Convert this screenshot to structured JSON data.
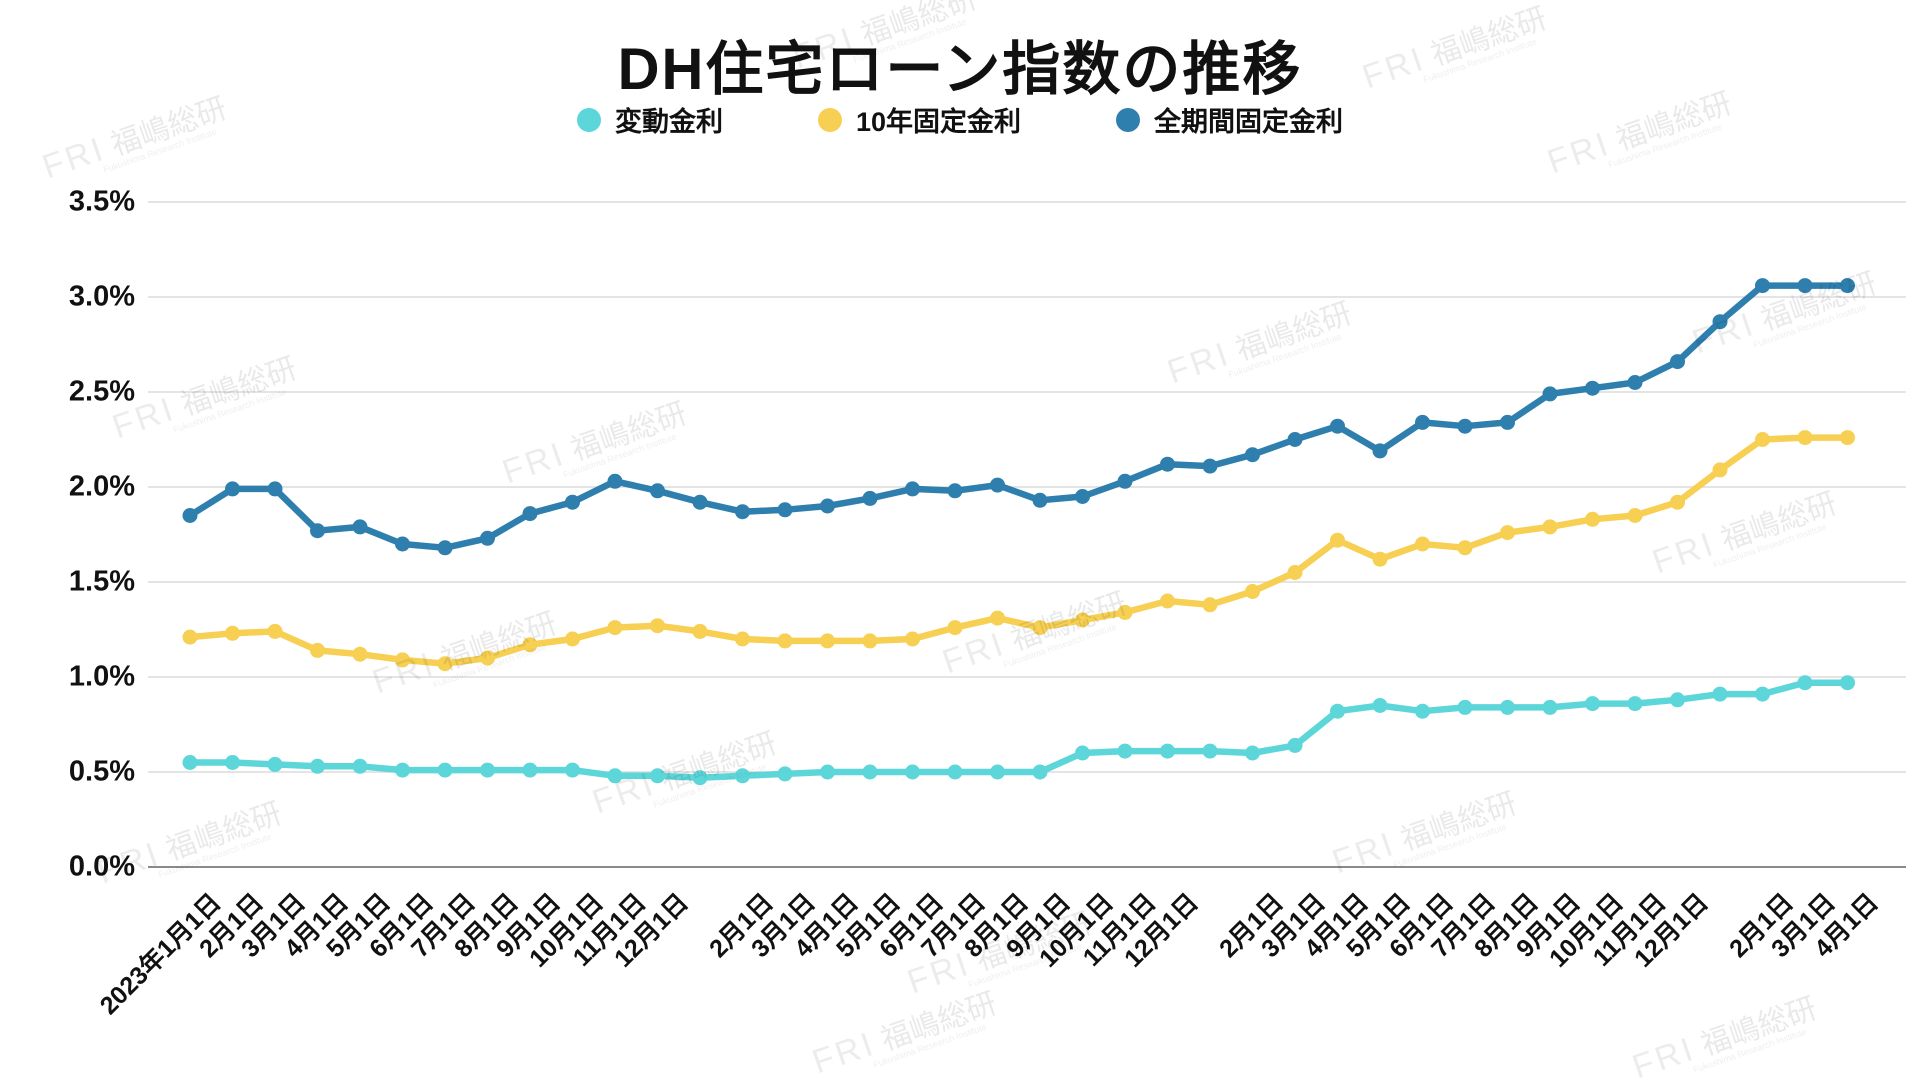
{
  "title": "DH住宅ローン指数の推移",
  "watermark": {
    "fri": "FRI",
    "jp": "福嶋総研",
    "sub": "Fukushima Research Institute"
  },
  "chart_data": {
    "type": "line",
    "title": "DH住宅ローン指数の推移",
    "grid": true,
    "legend_position": "top",
    "ylim": [
      0,
      3.5
    ],
    "ytick_step": 0.5,
    "ytick_labels": [
      "3.5%",
      "3.0%",
      "2.5%",
      "2.0%",
      "1.5%",
      "1.0%",
      "0.5%",
      "0.0%"
    ],
    "x_labels": [
      "2023年1月1日",
      "2月1日",
      "3月1日",
      "4月1日",
      "5月1日",
      "6月1日",
      "7月1日",
      "8月1日",
      "9月1日",
      "10月1日",
      "11月1日",
      "12月1日",
      "",
      "2月1日",
      "3月1日",
      "4月1日",
      "5月1日",
      "6月1日",
      "7月1日",
      "8月1日",
      "9月1日",
      "10月1日",
      "11月1日",
      "12月1日",
      "",
      "2月1日",
      "3月1日",
      "4月1日",
      "5月1日",
      "6月1日",
      "7月1日",
      "8月1日",
      "9月1日",
      "10月1日",
      "11月1日",
      "12月1日",
      "",
      "2月1日",
      "3月1日",
      "4月1日"
    ],
    "series": [
      {
        "name": "変動金利",
        "color": "#5DD6DA",
        "values": [
          0.55,
          0.55,
          0.54,
          0.53,
          0.53,
          0.51,
          0.51,
          0.51,
          0.51,
          0.51,
          0.48,
          0.48,
          0.47,
          0.48,
          0.49,
          0.5,
          0.5,
          0.5,
          0.5,
          0.5,
          0.5,
          0.6,
          0.61,
          0.61,
          0.61,
          0.6,
          0.64,
          0.82,
          0.85,
          0.82,
          0.84,
          0.84,
          0.84,
          0.86,
          0.86,
          0.88,
          0.91,
          0.91,
          0.97,
          0.97
        ]
      },
      {
        "name": "10年固定金利",
        "color": "#F7CF52",
        "values": [
          1.21,
          1.23,
          1.24,
          1.14,
          1.12,
          1.09,
          1.07,
          1.1,
          1.17,
          1.2,
          1.26,
          1.27,
          1.24,
          1.2,
          1.19,
          1.19,
          1.19,
          1.2,
          1.26,
          1.31,
          1.26,
          1.3,
          1.34,
          1.4,
          1.38,
          1.45,
          1.55,
          1.72,
          1.62,
          1.7,
          1.68,
          1.76,
          1.79,
          1.83,
          1.85,
          1.92,
          2.09,
          2.25,
          2.26,
          2.26
        ]
      },
      {
        "name": "全期間固定金利",
        "color": "#2E7FAE",
        "values": [
          1.85,
          1.99,
          1.99,
          1.77,
          1.79,
          1.7,
          1.68,
          1.73,
          1.86,
          1.92,
          2.03,
          1.98,
          1.92,
          1.87,
          1.88,
          1.9,
          1.94,
          1.99,
          1.98,
          2.01,
          1.93,
          1.95,
          2.03,
          2.12,
          2.11,
          2.17,
          2.25,
          2.32,
          2.19,
          2.34,
          2.32,
          2.34,
          2.49,
          2.52,
          2.55,
          2.66,
          2.87,
          3.06,
          3.06,
          3.06
        ]
      }
    ]
  }
}
